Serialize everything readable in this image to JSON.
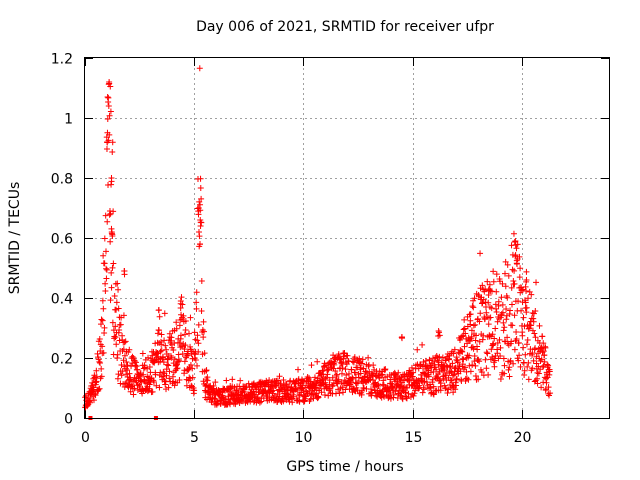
{
  "chart_data": {
    "type": "scatter",
    "title": "Day 006 of 2021, SRMTID for receiver ufpr",
    "xlabel": "GPS time / hours",
    "ylabel": "SRMTID / TECUs",
    "xlim": [
      0,
      24
    ],
    "ylim": [
      0,
      1.2
    ],
    "x_ticks": [
      0,
      5,
      10,
      15,
      20
    ],
    "x_tick_labels": [
      "0",
      "5",
      "10",
      "15",
      "20"
    ],
    "y_ticks": [
      0,
      0.2,
      0.4,
      0.6,
      0.8,
      1.0,
      1.2
    ],
    "y_tick_labels": [
      "0",
      "0.2",
      "0.4",
      "0.6",
      "0.8",
      "1",
      "1.2"
    ],
    "grid": true,
    "series": [
      {
        "name": "SRMTID",
        "color": "#ff0000",
        "marker": "plus",
        "profile": [
          [
            0.0,
            0.05
          ],
          [
            0.2,
            0.07
          ],
          [
            0.4,
            0.1
          ],
          [
            0.6,
            0.16
          ],
          [
            0.8,
            0.25
          ],
          [
            0.95,
            0.45
          ],
          [
            1.05,
            0.75
          ],
          [
            1.1,
            1.05
          ],
          [
            1.15,
            0.8
          ],
          [
            1.3,
            0.45
          ],
          [
            1.5,
            0.28
          ],
          [
            1.8,
            0.18
          ],
          [
            2.2,
            0.14
          ],
          [
            2.6,
            0.13
          ],
          [
            3.0,
            0.15
          ],
          [
            3.4,
            0.2
          ],
          [
            3.7,
            0.17
          ],
          [
            4.0,
            0.2
          ],
          [
            4.4,
            0.26
          ],
          [
            4.7,
            0.2
          ],
          [
            5.0,
            0.15
          ],
          [
            5.15,
            0.45
          ],
          [
            5.25,
            0.65
          ],
          [
            5.35,
            0.4
          ],
          [
            5.5,
            0.12
          ],
          [
            5.8,
            0.07
          ],
          [
            6.5,
            0.07
          ],
          [
            7.5,
            0.08
          ],
          [
            8.5,
            0.09
          ],
          [
            9.5,
            0.09
          ],
          [
            10.5,
            0.1
          ],
          [
            11.0,
            0.13
          ],
          [
            11.5,
            0.15
          ],
          [
            12.0,
            0.15
          ],
          [
            13.0,
            0.13
          ],
          [
            14.0,
            0.11
          ],
          [
            14.5,
            0.1
          ],
          [
            15.0,
            0.12
          ],
          [
            15.5,
            0.13
          ],
          [
            16.0,
            0.14
          ],
          [
            16.5,
            0.15
          ],
          [
            17.0,
            0.16
          ],
          [
            17.5,
            0.24
          ],
          [
            18.0,
            0.28
          ],
          [
            18.5,
            0.32
          ],
          [
            19.0,
            0.3
          ],
          [
            19.5,
            0.35
          ],
          [
            19.8,
            0.45
          ],
          [
            20.0,
            0.32
          ],
          [
            20.5,
            0.26
          ],
          [
            21.0,
            0.18
          ],
          [
            21.3,
            0.12
          ]
        ],
        "peaks": [
          {
            "x": 1.1,
            "y": 1.12
          },
          {
            "x": 1.05,
            "y": 1.07
          },
          {
            "x": 1.0,
            "y": 0.92
          },
          {
            "x": 1.2,
            "y": 0.8
          },
          {
            "x": 1.15,
            "y": 0.69
          },
          {
            "x": 1.25,
            "y": 0.62
          },
          {
            "x": 1.8,
            "y": 0.49
          },
          {
            "x": 5.2,
            "y": 0.7
          },
          {
            "x": 5.3,
            "y": 0.66
          },
          {
            "x": 5.25,
            "y": 0.58
          },
          {
            "x": 4.4,
            "y": 0.39
          },
          {
            "x": 3.4,
            "y": 0.36
          },
          {
            "x": 16.2,
            "y": 0.29
          },
          {
            "x": 14.5,
            "y": 0.27
          },
          {
            "x": 19.7,
            "y": 0.59
          },
          {
            "x": 19.8,
            "y": 0.53
          },
          {
            "x": 20.2,
            "y": 0.46
          },
          {
            "x": 18.5,
            "y": 0.43
          }
        ],
        "x_range": [
          0.0,
          21.3
        ],
        "point_count": 1800
      }
    ],
    "axis_markers": [
      {
        "x": 0.25,
        "y": 0
      },
      {
        "x": 3.25,
        "y": 0
      }
    ]
  }
}
